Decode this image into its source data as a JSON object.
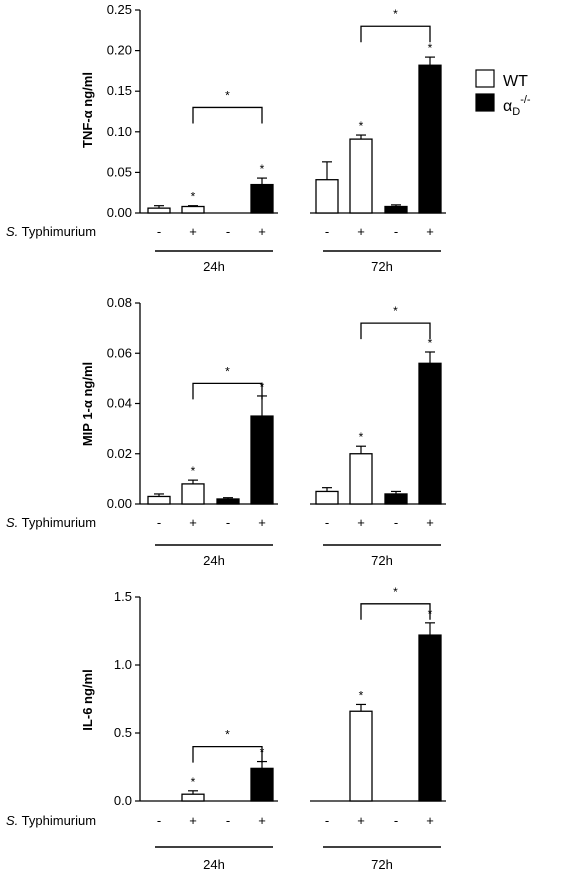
{
  "legend": {
    "wt_label": "WT",
    "ko_base": "α",
    "ko_sub": "D",
    "ko_sup": "-/-"
  },
  "condition_label_italic": "S.",
  "condition_label_rest": " Typhimurium",
  "group_labels": [
    "24h",
    "72h"
  ],
  "treatment_signs": [
    "-",
    "+",
    "-",
    "+"
  ],
  "colors": {
    "wt_fill": "#ffffff",
    "ko_fill": "#000000",
    "stroke": "#000000"
  },
  "chart_data": [
    {
      "type": "bar",
      "ylabel": "TNF-α ng/ml",
      "ylim": [
        0,
        0.25
      ],
      "yticks": [
        "0.00",
        "0.05",
        "0.10",
        "0.15",
        "0.20",
        "0.25"
      ],
      "categories": [
        "24h WT -",
        "24h WT +",
        "24h αD-/- -",
        "24h αD-/- +",
        "72h WT -",
        "72h WT +",
        "72h αD-/- -",
        "72h αD-/- +"
      ],
      "series": [
        {
          "values": [
            0.006,
            0.008,
            0.0,
            0.035,
            0.041,
            0.091,
            0.008,
            0.182
          ],
          "errors": [
            0.003,
            0.001,
            0.0,
            0.008,
            0.022,
            0.005,
            0.002,
            0.01
          ]
        }
      ],
      "significance_marks": [
        1,
        3,
        5,
        7
      ],
      "brackets": [
        {
          "from": 1,
          "to": 3,
          "y": 0.13
        },
        {
          "from": 5,
          "to": 7,
          "y": 0.23
        }
      ]
    },
    {
      "type": "bar",
      "ylabel": "MIP 1-α ng/ml",
      "ylim": [
        0,
        0.08
      ],
      "yticks": [
        "0.00",
        "0.02",
        "0.04",
        "0.06",
        "0.08"
      ],
      "categories": [
        "24h WT -",
        "24h WT +",
        "24h αD-/- -",
        "24h αD-/- +",
        "72h WT -",
        "72h WT +",
        "72h αD-/- -",
        "72h αD-/- +"
      ],
      "series": [
        {
          "values": [
            0.003,
            0.008,
            0.002,
            0.035,
            0.005,
            0.02,
            0.004,
            0.056
          ],
          "errors": [
            0.001,
            0.0015,
            0.0005,
            0.008,
            0.0015,
            0.003,
            0.001,
            0.0045
          ]
        }
      ],
      "significance_marks": [
        1,
        3,
        5,
        7
      ],
      "brackets": [
        {
          "from": 1,
          "to": 3,
          "y": 0.048
        },
        {
          "from": 5,
          "to": 7,
          "y": 0.072
        }
      ]
    },
    {
      "type": "bar",
      "ylabel": "IL-6 ng/ml",
      "ylim": [
        0,
        1.5
      ],
      "yticks": [
        "0.0",
        "0.5",
        "1.0",
        "1.5"
      ],
      "categories": [
        "24h WT -",
        "24h WT +",
        "24h αD-/- -",
        "24h αD-/- +",
        "72h WT -",
        "72h WT +",
        "72h αD-/- -",
        "72h αD-/- +"
      ],
      "series": [
        {
          "values": [
            0.0,
            0.05,
            0.0,
            0.24,
            0.0,
            0.66,
            0.0,
            1.22
          ],
          "errors": [
            0.0,
            0.025,
            0.0,
            0.05,
            0.0,
            0.05,
            0.0,
            0.09
          ]
        }
      ],
      "significance_marks": [
        1,
        3,
        5,
        7
      ],
      "brackets": [
        {
          "from": 1,
          "to": 3,
          "y": 0.4
        },
        {
          "from": 5,
          "to": 7,
          "y": 1.45
        }
      ]
    }
  ]
}
